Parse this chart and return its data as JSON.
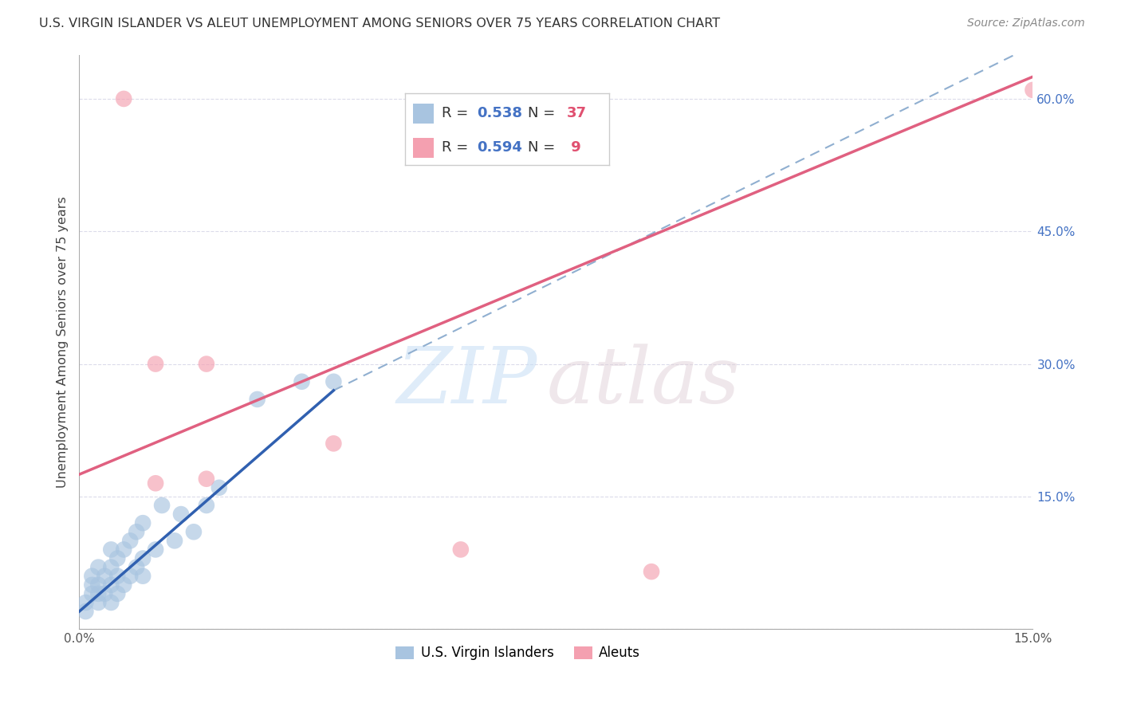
{
  "title": "U.S. VIRGIN ISLANDER VS ALEUT UNEMPLOYMENT AMONG SENIORS OVER 75 YEARS CORRELATION CHART",
  "source": "Source: ZipAtlas.com",
  "ylabel": "Unemployment Among Seniors over 75 years",
  "xlim": [
    0,
    0.15
  ],
  "ylim": [
    0,
    0.65
  ],
  "blue_R": 0.538,
  "blue_N": 37,
  "pink_R": 0.594,
  "pink_N": 9,
  "blue_color": "#a8c4e0",
  "pink_color": "#f4a0b0",
  "blue_line_color": "#3060b0",
  "pink_line_color": "#e06080",
  "dashed_line_color": "#90afd0",
  "background_color": "#ffffff",
  "grid_color": "#d8d8e8",
  "blue_scatter_x": [
    0.001,
    0.001,
    0.002,
    0.002,
    0.002,
    0.003,
    0.003,
    0.003,
    0.003,
    0.004,
    0.004,
    0.005,
    0.005,
    0.005,
    0.005,
    0.006,
    0.006,
    0.006,
    0.007,
    0.007,
    0.008,
    0.008,
    0.009,
    0.009,
    0.01,
    0.01,
    0.01,
    0.012,
    0.013,
    0.015,
    0.016,
    0.018,
    0.02,
    0.022,
    0.028,
    0.035,
    0.04
  ],
  "blue_scatter_y": [
    0.02,
    0.03,
    0.04,
    0.05,
    0.06,
    0.03,
    0.04,
    0.05,
    0.07,
    0.04,
    0.06,
    0.03,
    0.05,
    0.07,
    0.09,
    0.04,
    0.06,
    0.08,
    0.05,
    0.09,
    0.06,
    0.1,
    0.07,
    0.11,
    0.06,
    0.08,
    0.12,
    0.09,
    0.14,
    0.1,
    0.13,
    0.11,
    0.14,
    0.16,
    0.26,
    0.28,
    0.28
  ],
  "pink_scatter_x": [
    0.007,
    0.012,
    0.012,
    0.02,
    0.02,
    0.04,
    0.06,
    0.09,
    0.15
  ],
  "pink_scatter_y": [
    0.6,
    0.3,
    0.165,
    0.3,
    0.17,
    0.21,
    0.09,
    0.065,
    0.61
  ],
  "blue_trend_x": [
    0.0,
    0.04
  ],
  "blue_trend_y": [
    0.02,
    0.27
  ],
  "dashed_trend_x": [
    0.04,
    0.15
  ],
  "dashed_trend_y": [
    0.27,
    0.66
  ],
  "pink_trend_x": [
    0.0,
    0.15
  ],
  "pink_trend_y": [
    0.175,
    0.625
  ],
  "xtick_positions": [
    0.0,
    0.03,
    0.06,
    0.09,
    0.12,
    0.15
  ],
  "xtick_labels": [
    "0.0%",
    "",
    "",
    "",
    "",
    "15.0%"
  ],
  "ytick_positions": [
    0.0,
    0.15,
    0.3,
    0.45,
    0.6
  ],
  "ytick_labels_right": [
    "",
    "15.0%",
    "30.0%",
    "45.0%",
    "60.0%"
  ],
  "legend_blue_label": "U.S. Virgin Islanders",
  "legend_pink_label": "Aleuts"
}
